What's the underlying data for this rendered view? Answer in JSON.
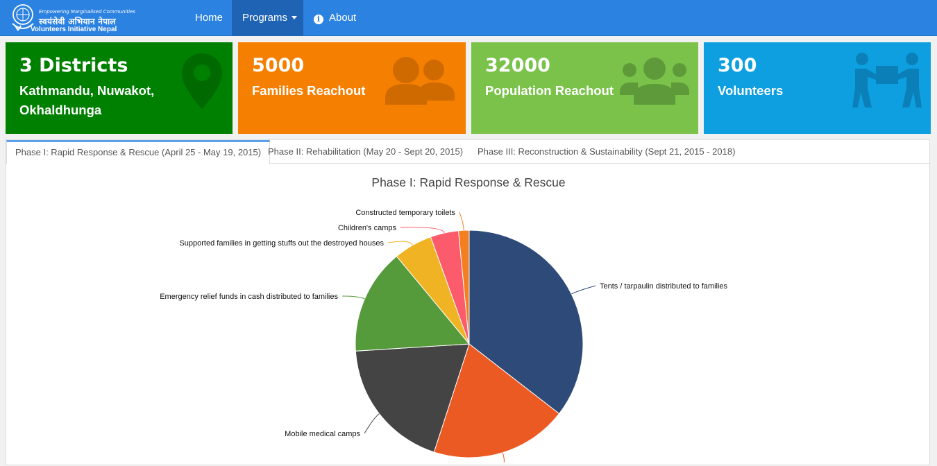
{
  "brand": {
    "tagline": "Empowering Marginalised Communities",
    "nepali_name": "स्वयंसेवी अभियान नेपाल",
    "english_name": "Volunteers Initiative Nepal"
  },
  "nav": {
    "home": "Home",
    "programs": "Programs",
    "about": "About"
  },
  "stats": [
    {
      "value": "3 Districts",
      "label": "Kathmandu, Nuwakot, Okhaldhunga",
      "icon": "map-marker-icon",
      "color": "#008000"
    },
    {
      "value": "5000",
      "label": "Families Reachout",
      "icon": "users-icon",
      "color": "#f57f00"
    },
    {
      "value": "32000",
      "label": "Population Reachout",
      "icon": "group-icon",
      "color": "#7ac24a"
    },
    {
      "value": "300",
      "label": "Volunteers",
      "icon": "people-carry-icon",
      "color": "#0d9fe0"
    }
  ],
  "tabs": [
    {
      "label": "Phase I: Rapid Response & Rescue (April 25 - May 19, 2015)",
      "active": true
    },
    {
      "label": "Phase II: Rehabilitation (May 20 - Sept 20, 2015)",
      "active": false
    },
    {
      "label": "Phase III: Reconstruction & Sustainability (Sept 21, 2015 - 2018)",
      "active": false
    }
  ],
  "chart_data": {
    "type": "pie",
    "title": "Phase I: Rapid Response & Rescue",
    "slices": [
      {
        "label": "Tents / tarpaulin distributed to families",
        "value": 35.5,
        "color": "#2d4a78"
      },
      {
        "label": "",
        "value": 19.5,
        "color": "#ec5a23"
      },
      {
        "label": "Mobile medical camps",
        "value": 19.0,
        "color": "#444444"
      },
      {
        "label": "Emergency relief funds in cash distributed to families",
        "value": 15.0,
        "color": "#559a3b"
      },
      {
        "label": "Supported families in getting stuffs out the destroyed houses",
        "value": 5.5,
        "color": "#f0b323"
      },
      {
        "label": "Children's camps",
        "value": 4.0,
        "color": "#fb5b6a"
      },
      {
        "label": "Constructed temporary toilets",
        "value": 1.5,
        "color": "#f57f20"
      }
    ],
    "legend": "none"
  }
}
